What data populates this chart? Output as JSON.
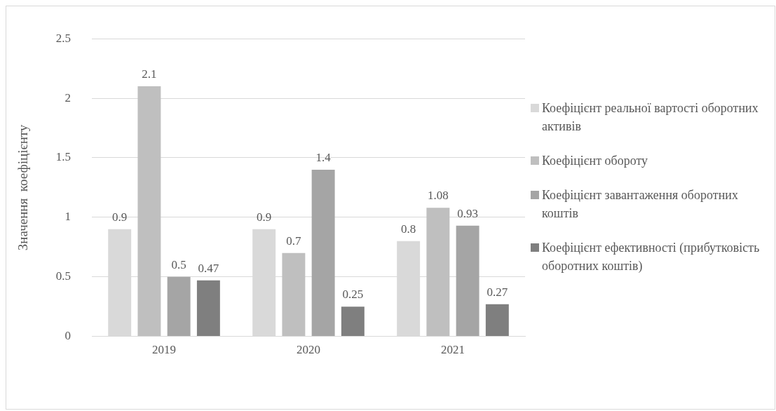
{
  "chart_data": {
    "type": "bar",
    "ylabel": "Значення  коефіцієнту",
    "categories": [
      "2019",
      "2020",
      "2021"
    ],
    "series": [
      {
        "name": "Коефіцієнт реальної вартості оборотних активів",
        "color": "#d9d9d9",
        "values": [
          0.9,
          0.9,
          0.8
        ]
      },
      {
        "name": "Коефіцієнт обороту",
        "color": "#bfbfbf",
        "values": [
          2.1,
          0.7,
          1.08
        ]
      },
      {
        "name": "Коефіцієнт завантаження оборотних коштів",
        "color": "#a5a5a5",
        "values": [
          0.5,
          1.4,
          0.93
        ]
      },
      {
        "name": "Коефіцієнт ефективності (прибутковість оборотних коштів)",
        "color": "#7f7f7f",
        "values": [
          0.47,
          0.25,
          0.27
        ]
      }
    ],
    "ylim": [
      0,
      2.5
    ],
    "yticks": [
      0,
      0.5,
      1,
      1.5,
      2,
      2.5
    ],
    "grid": "y",
    "legend": "right",
    "data_labels": true
  }
}
